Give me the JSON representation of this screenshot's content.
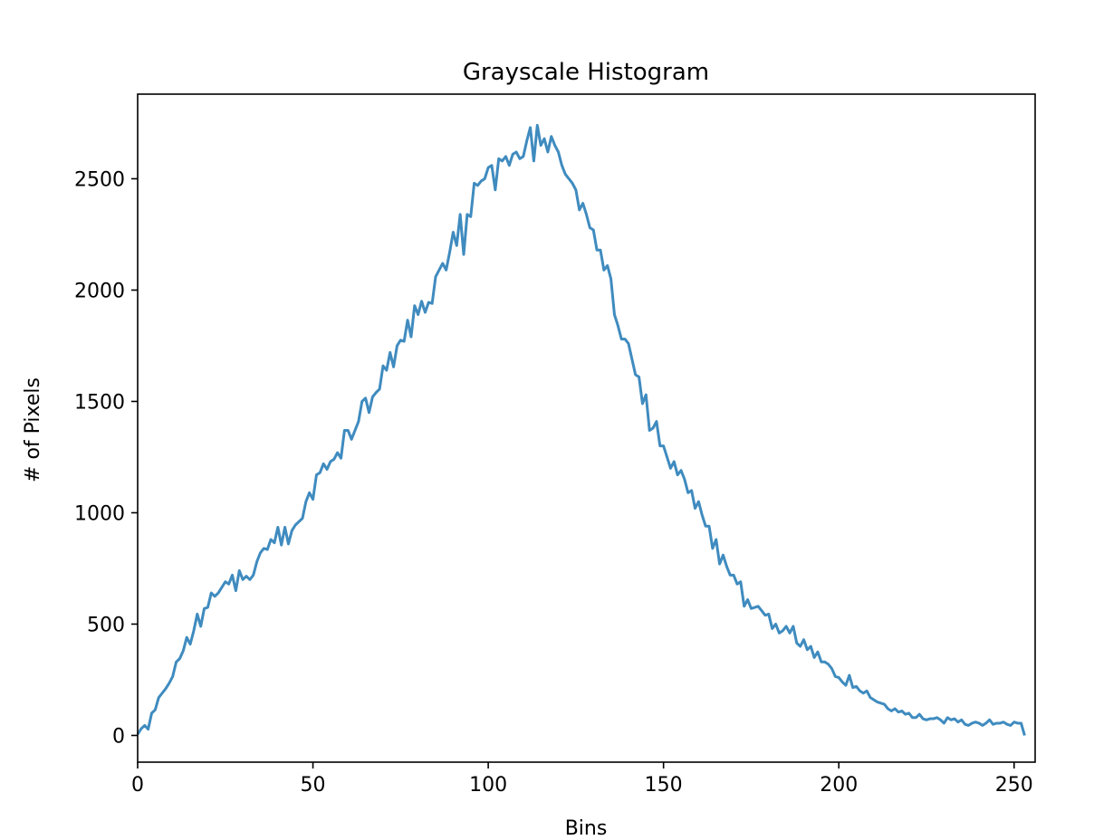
{
  "chart_data": {
    "type": "line",
    "title": "Grayscale Histogram",
    "xlabel": "Bins",
    "ylabel": "# of Pixels",
    "xlim": [
      0,
      256
    ],
    "ylim": [
      -120,
      2880
    ],
    "grid": false,
    "legend": "none",
    "line_color": "#3f8bbf",
    "xticks": [
      0,
      50,
      100,
      150,
      200,
      250
    ],
    "xtick_labels": [
      "0",
      "50",
      "100",
      "150",
      "200",
      "250"
    ],
    "yticks": [
      0,
      500,
      1000,
      1500,
      2000,
      2500
    ],
    "ytick_labels": [
      "0",
      "500",
      "1000",
      "1500",
      "2000",
      "2500"
    ],
    "series": [
      {
        "values": [
          5,
          30,
          45,
          28,
          100,
          115,
          170,
          190,
          210,
          235,
          265,
          330,
          345,
          380,
          440,
          410,
          470,
          545,
          490,
          570,
          575,
          640,
          625,
          640,
          665,
          690,
          680,
          720,
          650,
          740,
          700,
          715,
          700,
          720,
          780,
          820,
          840,
          835,
          880,
          865,
          935,
          855,
          935,
          860,
          920,
          945,
          960,
          975,
          1050,
          1090,
          1060,
          1170,
          1180,
          1220,
          1195,
          1230,
          1240,
          1270,
          1245,
          1370,
          1370,
          1330,
          1370,
          1410,
          1500,
          1515,
          1450,
          1520,
          1540,
          1555,
          1660,
          1640,
          1720,
          1655,
          1750,
          1775,
          1770,
          1865,
          1790,
          1930,
          1890,
          1950,
          1900,
          1945,
          1940,
          2060,
          2090,
          2120,
          2090,
          2170,
          2260,
          2200,
          2340,
          2160,
          2340,
          2330,
          2480,
          2470,
          2490,
          2500,
          2550,
          2560,
          2450,
          2590,
          2580,
          2600,
          2560,
          2610,
          2620,
          2590,
          2600,
          2670,
          2730,
          2580,
          2740,
          2650,
          2680,
          2620,
          2690,
          2650,
          2620,
          2560,
          2520,
          2500,
          2480,
          2450,
          2360,
          2390,
          2340,
          2280,
          2270,
          2180,
          2180,
          2090,
          2110,
          2050,
          1890,
          1840,
          1780,
          1780,
          1760,
          1690,
          1620,
          1610,
          1490,
          1530,
          1370,
          1380,
          1410,
          1300,
          1300,
          1250,
          1200,
          1230,
          1170,
          1190,
          1150,
          1090,
          1100,
          1020,
          1050,
          990,
          940,
          940,
          840,
          880,
          770,
          810,
          760,
          720,
          720,
          680,
          690,
          580,
          610,
          570,
          575,
          580,
          560,
          540,
          545,
          480,
          500,
          460,
          470,
          490,
          460,
          490,
          415,
          400,
          430,
          385,
          400,
          350,
          375,
          330,
          330,
          320,
          300,
          265,
          260,
          240,
          225,
          270,
          215,
          220,
          200,
          190,
          200,
          170,
          160,
          150,
          145,
          140,
          120,
          110,
          120,
          105,
          110,
          95,
          100,
          80,
          80,
          95,
          75,
          70,
          75,
          75,
          80,
          70,
          55,
          80,
          70,
          75,
          60,
          70,
          50,
          45,
          55,
          60,
          55,
          45,
          55,
          70,
          50,
          55,
          55,
          60,
          50,
          45,
          60,
          55,
          55,
          0
        ]
      }
    ]
  }
}
